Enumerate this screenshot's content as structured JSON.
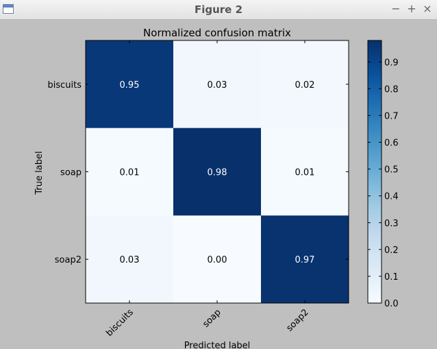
{
  "window": {
    "title": "Figure 2",
    "controls": {
      "minimize": "−",
      "maximize": "+",
      "close": "×"
    }
  },
  "chart_data": {
    "type": "heatmap",
    "title": "Normalized confusion matrix",
    "xlabel": "Predicted label",
    "ylabel": "True label",
    "x_categories": [
      "biscuits",
      "soap",
      "soap2"
    ],
    "y_categories": [
      "biscuits",
      "soap",
      "soap2"
    ],
    "values": [
      [
        0.95,
        0.03,
        0.02
      ],
      [
        0.01,
        0.98,
        0.01
      ],
      [
        0.03,
        0.0,
        0.97
      ]
    ],
    "cell_labels": [
      [
        "0.95",
        "0.03",
        "0.02"
      ],
      [
        "0.01",
        "0.98",
        "0.01"
      ],
      [
        "0.03",
        "0.00",
        "0.97"
      ]
    ],
    "colormap": "Blues",
    "colorbar": {
      "min": 0.0,
      "max": 0.98,
      "ticks": [
        0.0,
        0.1,
        0.2,
        0.3,
        0.4,
        0.5,
        0.6,
        0.7,
        0.8,
        0.9
      ],
      "tick_labels": [
        "0.0",
        "0.1",
        "0.2",
        "0.3",
        "0.4",
        "0.5",
        "0.6",
        "0.7",
        "0.8",
        "0.9"
      ]
    }
  }
}
